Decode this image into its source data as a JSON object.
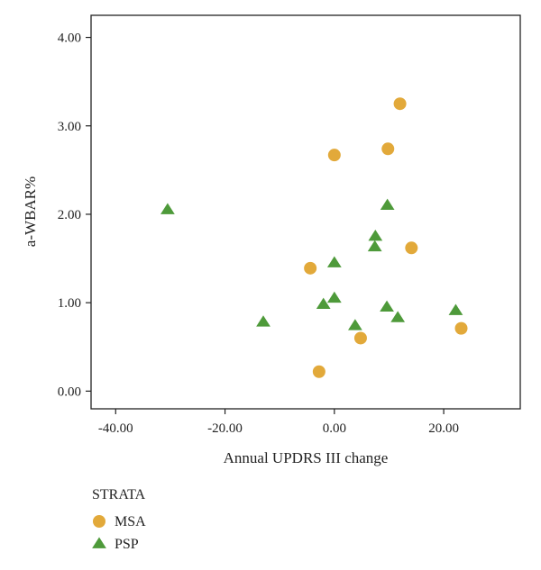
{
  "chart_data": {
    "type": "scatter",
    "xlabel": "Annual UPDRS III change",
    "ylabel": "a-WBAR%",
    "xlim": [
      -44.5,
      34
    ],
    "ylim": [
      -0.2,
      4.25
    ],
    "x_ticks": [
      -40,
      -20,
      0,
      20
    ],
    "x_tick_labels": [
      "-40.00",
      "-20.00",
      "0.00",
      "20.00"
    ],
    "y_ticks": [
      0,
      1,
      2,
      3,
      4
    ],
    "y_tick_labels": [
      "0.00",
      "1.00",
      "2.00",
      "3.00",
      "4.00"
    ],
    "grid": false,
    "legend": {
      "title": "STRATA",
      "placement": "bottom-left"
    },
    "series": [
      {
        "name": "MSA",
        "marker": "circle",
        "color": "#E2A93A",
        "points": [
          {
            "x": 12.0,
            "y": 3.25
          },
          {
            "x": 0.0,
            "y": 2.67
          },
          {
            "x": 9.8,
            "y": 2.74
          },
          {
            "x": 14.1,
            "y": 1.62
          },
          {
            "x": -4.4,
            "y": 1.39
          },
          {
            "x": 4.8,
            "y": 0.6
          },
          {
            "x": -2.8,
            "y": 0.22
          },
          {
            "x": 23.2,
            "y": 0.71
          }
        ]
      },
      {
        "name": "PSP",
        "marker": "triangle",
        "color": "#4E9A3A",
        "points": [
          {
            "x": -30.5,
            "y": 2.05
          },
          {
            "x": 9.7,
            "y": 2.1
          },
          {
            "x": 7.5,
            "y": 1.75
          },
          {
            "x": 7.4,
            "y": 1.63
          },
          {
            "x": 0.0,
            "y": 1.45
          },
          {
            "x": 0.0,
            "y": 1.05
          },
          {
            "x": -2.0,
            "y": 0.98
          },
          {
            "x": -13.0,
            "y": 0.78
          },
          {
            "x": 3.8,
            "y": 0.74
          },
          {
            "x": 9.6,
            "y": 0.95
          },
          {
            "x": 11.6,
            "y": 0.83
          },
          {
            "x": 22.2,
            "y": 0.91
          }
        ]
      }
    ]
  }
}
